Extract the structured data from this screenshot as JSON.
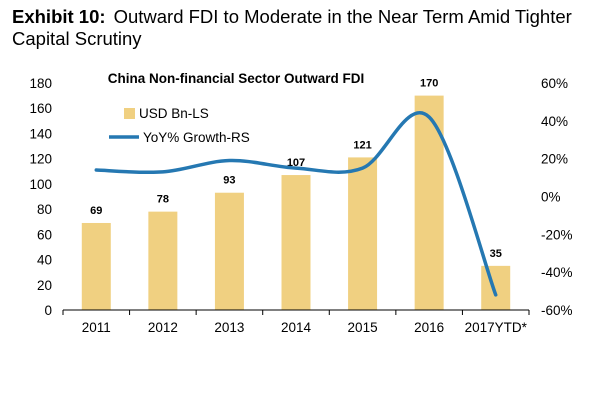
{
  "exhibit": {
    "label": "Exhibit 10:",
    "title": "Outward FDI to Moderate in the Near Term Amid Tighter Capital Scrutiny"
  },
  "chart_data": {
    "type": "bar",
    "title": "China Non-financial Sector Outward FDI",
    "categories": [
      "2011",
      "2012",
      "2013",
      "2014",
      "2015",
      "2016",
      "2017YTD*"
    ],
    "series": [
      {
        "name": "USD Bn-LS",
        "type": "bar",
        "axis": "left",
        "values": [
          69,
          78,
          93,
          107,
          121,
          170,
          35
        ],
        "labels": [
          "69",
          "78",
          "93",
          "107",
          "121",
          "170",
          "35"
        ],
        "color": "#f0d081"
      },
      {
        "name": "YoY% Growth-RS",
        "type": "line",
        "axis": "right",
        "values": [
          14,
          13,
          19,
          15,
          15,
          42,
          -52
        ],
        "color": "#2578b2"
      }
    ],
    "y_left": {
      "min": 0,
      "max": 180,
      "ticks": [
        "0",
        "20",
        "40",
        "60",
        "80",
        "100",
        "120",
        "140",
        "160",
        "180"
      ]
    },
    "y_right": {
      "min": -60,
      "max": 60,
      "ticks": [
        "-60%",
        "-40%",
        "-20%",
        "0%",
        "20%",
        "40%",
        "60%"
      ]
    },
    "grid": false,
    "legend": "top-left"
  }
}
